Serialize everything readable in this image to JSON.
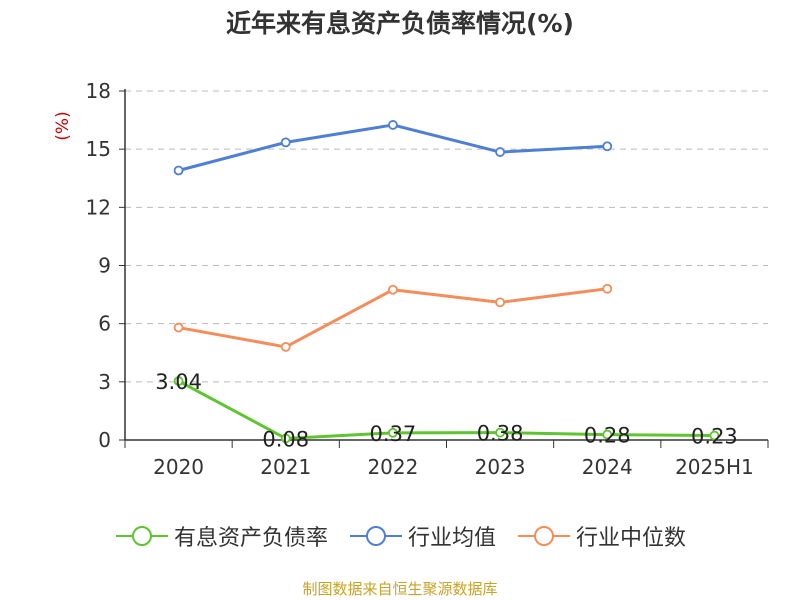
{
  "chart_data": {
    "type": "line",
    "title": "近年来有息资产负债率情况(%)",
    "ylabel": "(%)",
    "categories": [
      "2020",
      "2021",
      "2022",
      "2023",
      "2024",
      "2025H1"
    ],
    "ylim": [
      0,
      18
    ],
    "yticks": [
      0,
      3,
      6,
      9,
      12,
      15,
      18
    ],
    "grid": true,
    "legend_position": "bottom",
    "series": [
      {
        "name": "有息资产负债率",
        "color": "#5ec42f",
        "values": [
          3.04,
          0.08,
          0.37,
          0.38,
          0.28,
          0.23
        ],
        "labels": [
          "3.04",
          "0.08",
          "0.37",
          "0.38",
          "0.28",
          "0.23"
        ]
      },
      {
        "name": "行业均值",
        "color": "#4e7fd6",
        "values": [
          13.9,
          15.35,
          16.25,
          14.85,
          15.15,
          null
        ]
      },
      {
        "name": "行业中位数",
        "color": "#f58d5b",
        "values": [
          5.8,
          4.8,
          7.75,
          7.1,
          7.8,
          null
        ]
      }
    ]
  },
  "source": "制图数据来自恒生聚源数据库",
  "colors": {
    "ylabel": "#cc0000",
    "grid": "#bbbbbb",
    "axis": "#333333"
  }
}
